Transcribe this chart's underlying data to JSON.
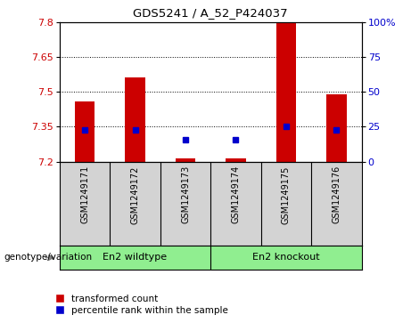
{
  "title": "GDS5241 / A_52_P424037",
  "samples": [
    "GSM1249171",
    "GSM1249172",
    "GSM1249173",
    "GSM1249174",
    "GSM1249175",
    "GSM1249176"
  ],
  "bar_tops": [
    7.46,
    7.565,
    7.215,
    7.215,
    7.8,
    7.49
  ],
  "bar_bottoms": [
    7.2,
    7.2,
    7.2,
    7.2,
    7.2,
    7.2
  ],
  "blue_dot_y": [
    7.335,
    7.335,
    7.295,
    7.295,
    7.35,
    7.335
  ],
  "ylim": [
    7.2,
    7.8
  ],
  "yticks_left": [
    7.2,
    7.35,
    7.5,
    7.65,
    7.8
  ],
  "yticks_right": [
    0,
    25,
    50,
    75,
    100
  ],
  "dotted_lines": [
    7.35,
    7.5,
    7.65
  ],
  "bar_color": "#cc0000",
  "dot_color": "#0000cc",
  "group1_label": "En2 wildtype",
  "group2_label": "En2 knockout",
  "xlabel_group": "genotype/variation",
  "legend_red": "transformed count",
  "legend_blue": "percentile rank within the sample",
  "tick_label_color_left": "#cc0000",
  "tick_label_color_right": "#0000cc",
  "bg_plot": "#ffffff",
  "bg_sample_strip": "#d3d3d3",
  "bg_group_strip": "#90ee90"
}
